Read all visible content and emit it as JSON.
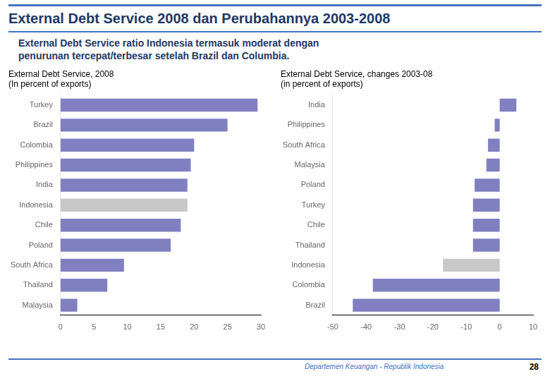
{
  "title": "External Debt Service 2008 dan Perubahannya 2003-2008",
  "subtitle": [
    "External Debt Service ratio Indonesia termasuk moderat dengan",
    "penurunan tercepat/terbesar setelah Brazil dan Columbia."
  ],
  "annotations": [
    "Departemen Keuangan - Republik Indonesia",
    "28"
  ],
  "chart_data": [
    {
      "type": "bar",
      "orientation": "horizontal",
      "title": [
        "External Debt Service, 2008",
        "(In percent of exports)"
      ],
      "categories": [
        "Malaysia",
        "Thailand",
        "South Africa",
        "Poland",
        "Chile",
        "Indonesia",
        "India",
        "Philippines",
        "Colombia",
        "Brazil",
        "Turkey"
      ],
      "values": [
        2.5,
        7.0,
        9.5,
        16.5,
        18.0,
        19.0,
        19.0,
        19.5,
        20.0,
        25.0,
        29.5
      ],
      "colors": [
        "#8080c0",
        "#8080c0",
        "#8080c0",
        "#8080c0",
        "#8080c0",
        "#c8c8c8",
        "#8080c0",
        "#8080c0",
        "#8080c0",
        "#8080c0",
        "#8080c0"
      ],
      "xlim": [
        0,
        30
      ],
      "xticks": [
        0,
        5,
        10,
        15,
        20,
        25,
        30
      ],
      "grid": false
    },
    {
      "type": "bar",
      "orientation": "horizontal",
      "title": [
        "External Debt Service, changes 2003-08",
        "(in percent of exports)"
      ],
      "categories": [
        "Brazil",
        "Colombia",
        "Indonesia",
        "Thailand",
        "Chile",
        "Turkey",
        "Poland",
        "Malaysia",
        "South Africa",
        "Philippines",
        "India"
      ],
      "values": [
        -44.0,
        -38.0,
        -17.0,
        -8.0,
        -8.0,
        -8.0,
        -7.5,
        -4.0,
        -3.5,
        -1.5,
        5.0
      ],
      "colors": [
        "#8080c0",
        "#8080c0",
        "#c8c8c8",
        "#8080c0",
        "#8080c0",
        "#8080c0",
        "#8080c0",
        "#8080c0",
        "#8080c0",
        "#8080c0",
        "#8080c0"
      ],
      "xlim": [
        -50,
        10
      ],
      "xticks": [
        -50,
        -40,
        -30,
        -20,
        -10,
        0,
        10
      ],
      "grid": false
    }
  ]
}
